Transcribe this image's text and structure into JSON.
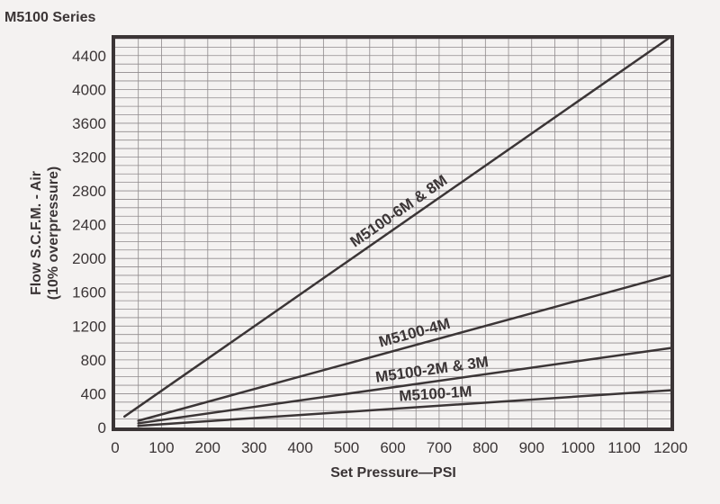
{
  "title": "M5100 Series",
  "chart_data": {
    "type": "line",
    "title": "M5100 Series",
    "xlabel": "Set Pressure—PSI",
    "ylabel": "Flow S.C.F.M. - Air",
    "ylabel_sub": "(10% overpressure)",
    "xlim": [
      0,
      1200
    ],
    "ylim": [
      0,
      4600
    ],
    "x_ticks": [
      0,
      100,
      200,
      300,
      400,
      500,
      600,
      700,
      800,
      900,
      1000,
      1100,
      1200
    ],
    "y_ticks": [
      0,
      400,
      800,
      1200,
      1600,
      2000,
      2400,
      2800,
      3200,
      3600,
      4000,
      4400
    ],
    "grid": true,
    "series": [
      {
        "name": "M5100-6M & 8M",
        "points": [
          [
            20,
            130
          ],
          [
            1200,
            4620
          ]
        ]
      },
      {
        "name": "M5100-4M",
        "points": [
          [
            50,
            80
          ],
          [
            1200,
            1800
          ]
        ]
      },
      {
        "name": "M5100-2M & 3M",
        "points": [
          [
            50,
            50
          ],
          [
            1200,
            940
          ]
        ]
      },
      {
        "name": "M5100-1M",
        "points": [
          [
            50,
            20
          ],
          [
            1200,
            440
          ]
        ]
      }
    ],
    "colors": {
      "line": "#3b3536",
      "grid": "#8f8a8c",
      "frame": "#3b3536",
      "background": "#f4f2f1"
    }
  }
}
